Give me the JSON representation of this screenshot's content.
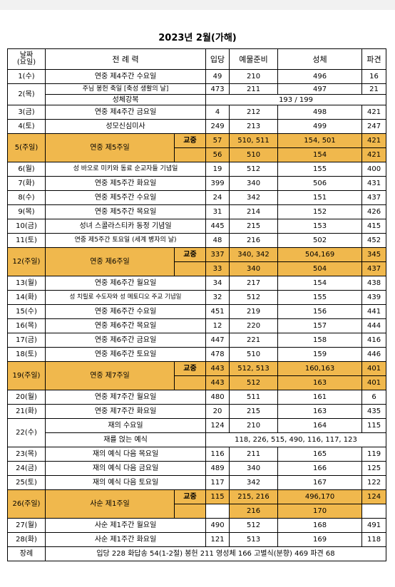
{
  "title": "2023년  2월(가해)",
  "headers": {
    "date_line1": "날짜",
    "date_line2": "(요일)",
    "liturgy": "전  례  력",
    "entrance": "입당",
    "offertory": "예물준비",
    "communion": "성체",
    "recessional": "파견"
  },
  "rows": {
    "r1": {
      "date": "1(수)",
      "name": "연중 제4주간 수요일",
      "e": "49",
      "o": "210",
      "c": "496",
      "r": "16"
    },
    "r2": {
      "date": "2(목)",
      "name": "주님 봉헌 축일 [축성 생활의 날]",
      "e": "473",
      "o": "211",
      "c": "497",
      "r": "21",
      "sub_name": "성체강복",
      "sub_val": "193 / 199"
    },
    "r3": {
      "date": "3(금)",
      "name": "연중 제4주간 금요일",
      "e": "4",
      "o": "212",
      "c": "498",
      "r": "421"
    },
    "r4": {
      "date": "4(토)",
      "name": "성모신심미사",
      "e": "249",
      "o": "213",
      "c": "499",
      "r": "247"
    },
    "r5": {
      "date": "5(주일)",
      "name": "연중 제5주일",
      "tag": "교중",
      "e": "57",
      "o": "510, 511",
      "c": "154, 501",
      "r": "421",
      "e2": "56",
      "o2": "510",
      "c2": "154",
      "r2": "421"
    },
    "r6": {
      "date": "6(월)",
      "name": "성 바오로 미키와 동료 순교자들 기념일",
      "e": "19",
      "o": "512",
      "c": "155",
      "r": "400"
    },
    "r7": {
      "date": "7(화)",
      "name": "연중 제5주간 화요일",
      "e": "399",
      "o": "340",
      "c": "506",
      "r": "431"
    },
    "r8": {
      "date": "8(수)",
      "name": "연중 제5주간 수요일",
      "e": "24",
      "o": "342",
      "c": "151",
      "r": "437"
    },
    "r9": {
      "date": "9(목)",
      "name": "연중 제5주간 목요일",
      "e": "31",
      "o": "214",
      "c": "152",
      "r": "426"
    },
    "r10": {
      "date": "10(금)",
      "name": "성녀 스콜라스티카 동정 기념일",
      "e": "445",
      "o": "215",
      "c": "153",
      "r": "415"
    },
    "r11": {
      "date": "11(토)",
      "name": "연중 제5주간 토요일 (세계 병자의 날)",
      "e": "48",
      "o": "216",
      "c": "502",
      "r": "452"
    },
    "r12": {
      "date": "12(주일)",
      "name": "연중 제6주일",
      "tag": "교중",
      "e": "337",
      "o": "340, 342",
      "c": "504,169",
      "r": "345",
      "e2": "33",
      "o2": "340",
      "c2": "504",
      "r2": "437"
    },
    "r13": {
      "date": "13(월)",
      "name": "연중 제6주간 월요일",
      "e": "34",
      "o": "217",
      "c": "154",
      "r": "438"
    },
    "r14": {
      "date": "14(화)",
      "name": "성 치릴로 수도자와 성 메토디오 주교 기념일",
      "e": "32",
      "o": "512",
      "c": "155",
      "r": "439"
    },
    "r15": {
      "date": "15(수)",
      "name": "연중 제6주간 수요일",
      "e": "451",
      "o": "219",
      "c": "156",
      "r": "441"
    },
    "r16": {
      "date": "16(목)",
      "name": "연중 제6주간 목요일",
      "e": "12",
      "o": "220",
      "c": "157",
      "r": "444"
    },
    "r17": {
      "date": "17(금)",
      "name": "연중 제6주간 금요일",
      "e": "447",
      "o": "221",
      "c": "158",
      "r": "416"
    },
    "r18": {
      "date": "18(토)",
      "name": "연중 제6주간 토요일",
      "e": "478",
      "o": "510",
      "c": "159",
      "r": "446"
    },
    "r19": {
      "date": "19(주일)",
      "name": "연중 제7주일",
      "tag": "교중",
      "e": "443",
      "o": "512, 513",
      "c": "160,163",
      "r": "401",
      "e2": "443",
      "o2": "512",
      "c2": "163",
      "r2": "401"
    },
    "r20": {
      "date": "20(월)",
      "name": "연중 제7주간 월요일",
      "e": "480",
      "o": "511",
      "c": "161",
      "r": "6"
    },
    "r21": {
      "date": "21(화)",
      "name": "연중 제7주간 화요일",
      "e": "20",
      "o": "215",
      "c": "163",
      "r": "435"
    },
    "r22": {
      "date": "22(수)",
      "name": "재의 수요일",
      "e": "124",
      "o": "210",
      "c": "164",
      "r": "115",
      "sub_name": "재를 얹는 예식",
      "sub_val": "118, 226, 515, 490, 116, 117, 123"
    },
    "r23": {
      "date": "23(목)",
      "name": "재의 예식 다음 목요일",
      "e": "116",
      "o": "211",
      "c": "165",
      "r": "119"
    },
    "r24": {
      "date": "24(금)",
      "name": "재의 예식 다음 금요일",
      "e": "489",
      "o": "340",
      "c": "166",
      "r": "125"
    },
    "r25": {
      "date": "25(토)",
      "name": "재의 예식 다음 토요일",
      "e": "117",
      "o": "342",
      "c": "167",
      "r": "122"
    },
    "r26": {
      "date": "26(주일)",
      "name": "사순 제1주일",
      "tag": "교중",
      "e": "115",
      "o": "215, 216",
      "c": "496,170",
      "r": "124",
      "e2": "",
      "o2": "216",
      "c2": "170",
      "r2": ""
    },
    "r27": {
      "date": "27(월)",
      "name": "사순 제1주간 월요일",
      "e": "490",
      "o": "512",
      "c": "168",
      "r": "491"
    },
    "r28": {
      "date": "28(화)",
      "name": "사순 제1주간 화요일",
      "e": "121",
      "o": "513",
      "c": "169",
      "r": "118"
    }
  },
  "funeral": {
    "label": "장례",
    "text": "입당 228 화답송 54(1-2절) 봉헌 211 영성체 166 고별식(분향) 469 파견 68"
  },
  "colors": {
    "sunday_highlight": "#f0b84d"
  }
}
